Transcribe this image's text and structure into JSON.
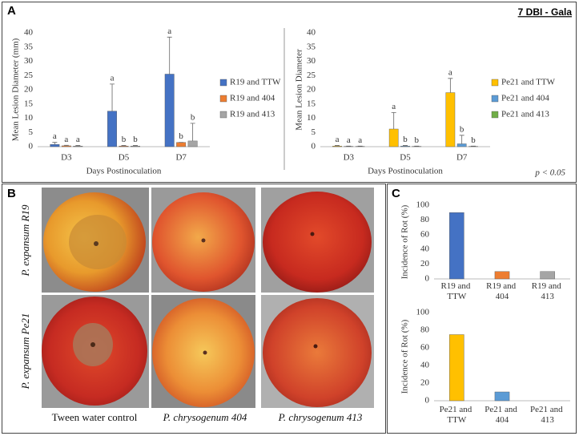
{
  "chart_data": [
    {
      "type": "bar",
      "categories": [
        "D3",
        "D5",
        "D7"
      ],
      "y_label": "Mean Lesion Diameter (mm)",
      "x_label": "Days Postinoculation",
      "ylim": [
        0,
        40
      ],
      "yticks": [
        0,
        5,
        10,
        15,
        20,
        25,
        30,
        35,
        40
      ],
      "series": [
        {
          "name": "R19 and TTW",
          "color": "#4472c4",
          "values": [
            0.8,
            12.5,
            25.5
          ],
          "errors": [
            0.7,
            9.5,
            13
          ],
          "labels": [
            "a",
            "a",
            "a"
          ]
        },
        {
          "name": "R19 and 404",
          "color": "#ed7d31",
          "values": [
            0.3,
            0.2,
            1.5
          ],
          "errors": [
            0.2,
            0.2,
            0
          ],
          "labels": [
            "a",
            "b",
            "b"
          ]
        },
        {
          "name": "R19 and 413",
          "color": "#a5a5a5",
          "values": [
            0.2,
            0.2,
            2
          ],
          "errors": [
            0.2,
            0.2,
            6.2
          ],
          "labels": [
            "a",
            "b",
            "b"
          ]
        }
      ]
    },
    {
      "type": "bar",
      "categories": [
        "D3",
        "D5",
        "D7"
      ],
      "y_label": "Mean Lesion Diameter",
      "x_label": "Days Postinoculation",
      "ylim": [
        0,
        40
      ],
      "yticks": [
        0,
        5,
        10,
        15,
        20,
        25,
        30,
        35,
        40
      ],
      "series": [
        {
          "name": "Pe21 and TTW",
          "color": "#ffc000",
          "values": [
            0.2,
            6.2,
            19
          ],
          "errors": [
            0.2,
            5.8,
            5
          ],
          "labels": [
            "a",
            "a",
            "a"
          ]
        },
        {
          "name": "Pe21 and 404",
          "color": "#5b9bd5",
          "values": [
            0.1,
            0.2,
            1
          ],
          "errors": [
            0.1,
            0.2,
            3
          ],
          "labels": [
            "a",
            "b",
            "b"
          ]
        },
        {
          "name": "Pe21 and 413",
          "color": "#70ad47",
          "values": [
            0.1,
            0.1,
            0.1
          ],
          "errors": [
            0.1,
            0.1,
            0.1
          ],
          "labels": [
            "a",
            "b",
            "b"
          ]
        }
      ]
    },
    {
      "type": "bar",
      "categories": [
        "R19 and TTW",
        "R19 and 404",
        "R19 and 413"
      ],
      "y_label": "Incidence of Rot (%)",
      "ylim": [
        0,
        100
      ],
      "yticks": [
        0,
        20,
        40,
        60,
        80,
        100
      ],
      "values": [
        90,
        10,
        10
      ],
      "colors": [
        "#4472c4",
        "#ed7d31",
        "#a5a5a5"
      ]
    },
    {
      "type": "bar",
      "categories": [
        "Pe21 and TTW",
        "Pe21 and 404",
        "Pe21 and 413"
      ],
      "y_label": "Incidence of Rot (%)",
      "ylim": [
        0,
        100
      ],
      "yticks": [
        0,
        20,
        40,
        60,
        80,
        100
      ],
      "values": [
        75,
        10,
        0
      ],
      "colors": [
        "#ffc000",
        "#5b9bd5",
        "#70ad47"
      ]
    }
  ],
  "panels": {
    "a": "A",
    "b": "B",
    "c": "C",
    "heading": "7 DBI - Gala",
    "significance": "p < 0.05",
    "rows": [
      "P. expansum R19",
      "P. expansum Pe21"
    ],
    "columns": [
      "Tween water control",
      "P. chrysogenum 404",
      "P. chrysogenum 413"
    ]
  }
}
